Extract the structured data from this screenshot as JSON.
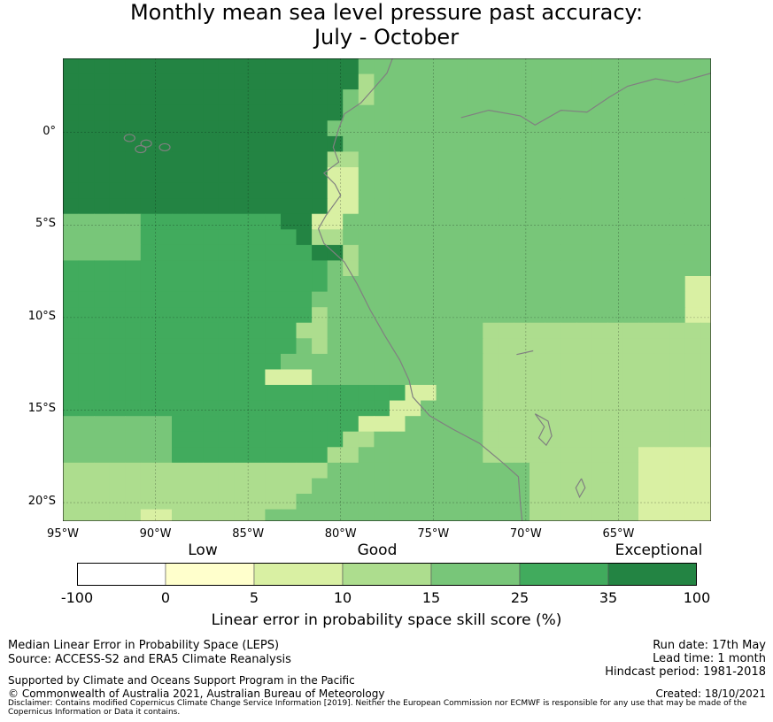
{
  "title": {
    "line1": "Monthly mean sea level pressure past accuracy:",
    "line2": "July - October"
  },
  "map": {
    "x_ticks": [
      "95°W",
      "90°W",
      "85°W",
      "80°W",
      "75°W",
      "70°W",
      "65°W"
    ],
    "y_ticks": [
      "0°",
      "5°S",
      "10°S",
      "15°S",
      "20°S"
    ],
    "lon_range": [
      -95,
      -60
    ],
    "lat_range": [
      -21,
      4
    ],
    "coastline_color": "#808080",
    "grid": true
  },
  "legend": {
    "categories": {
      "low": "Low",
      "good": "Good",
      "exceptional": "Exceptional"
    },
    "bins": [
      {
        "from": "-100",
        "to": "0",
        "color": "#ffffff"
      },
      {
        "from": "0",
        "to": "5",
        "color": "#ffffcc"
      },
      {
        "from": "5",
        "to": "10",
        "color": "#d9f0a3"
      },
      {
        "from": "10",
        "to": "15",
        "color": "#addd8e"
      },
      {
        "from": "15",
        "to": "25",
        "color": "#78c679"
      },
      {
        "from": "25",
        "to": "35",
        "color": "#41ab5d"
      },
      {
        "from": "35",
        "to": "100",
        "color": "#238443"
      }
    ],
    "tick_labels": [
      "-100",
      "0",
      "5",
      "10",
      "15",
      "25",
      "35",
      "100"
    ],
    "label": "Linear error in probability space skill score (%)"
  },
  "footer": {
    "left1": "Median Linear Error in Probability Space (LEPS)",
    "left2": "Source: ACCESS-S2 and ERA5 Climate Reanalysis",
    "support": "Supported by Climate and Oceans Support Program in the Pacific",
    "copyright": "© Commonwealth of Australia 2021, Australian Bureau of Meteorology",
    "disclaimer": "Disclaimer: Contains modified Copernicus Climate Change Service Information [2019]. Neither the European Commission nor ECMWF is responsible for any use that may be made of the Copernicus Information or Data it contains.",
    "run_date": "Run date: 17th May",
    "lead_time": "Lead time: 1 month",
    "hindcast": "Hindcast period: 1981-2018",
    "created": "Created: 18/10/2021"
  }
}
